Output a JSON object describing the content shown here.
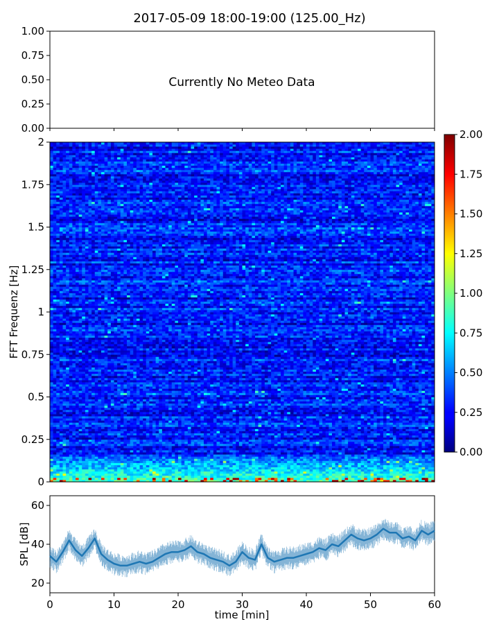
{
  "title": "2017-05-09 18:00-19:00 (125.00_Hz)",
  "meteo": {
    "message": "Currently No Meteo Data",
    "y_ticks": [
      "0.00",
      "0.25",
      "0.50",
      "0.75",
      "1.00"
    ]
  },
  "chart_data": [
    {
      "type": "table",
      "panel": "meteo",
      "ylim": [
        0,
        1
      ],
      "y_ticks": [
        0,
        0.25,
        0.5,
        0.75,
        1.0
      ],
      "annotation": "Currently No Meteo Data"
    },
    {
      "type": "heatmap",
      "panel": "spectrogram",
      "ylabel": "FFT Frequenz [Hz]",
      "xlim": [
        0,
        60
      ],
      "ylim": [
        0,
        2
      ],
      "y_ticks": [
        "0",
        "0.25",
        "0.5",
        "0.75",
        "1",
        "1.25",
        "1.5",
        "1.75",
        "2"
      ],
      "colormap": "jet",
      "colorbar_range": [
        0,
        2
      ],
      "colorbar_ticks": [
        "0.00",
        "0.25",
        "0.50",
        "0.75",
        "1.00",
        "1.25",
        "1.50",
        "1.75",
        "2.00"
      ],
      "rows": 160,
      "cols": 120,
      "typical_value": 0.3,
      "low_freq_band_hz": [
        0,
        0.15
      ],
      "low_freq_band_value": 0.9,
      "peak_value": 2.0
    },
    {
      "type": "line",
      "panel": "spl",
      "xlabel": "time [min]",
      "ylabel": "SPL [dB]",
      "xlim": [
        0,
        60
      ],
      "ylim": [
        15,
        65
      ],
      "x_ticks": [
        "0",
        "10",
        "20",
        "30",
        "40",
        "50",
        "60"
      ],
      "y_ticks": [
        "20",
        "40",
        "60"
      ],
      "color": "#1f77b4",
      "x": [
        0,
        1,
        2,
        3,
        4,
        5,
        6,
        7,
        8,
        9,
        10,
        11,
        12,
        13,
        14,
        15,
        16,
        17,
        18,
        19,
        20,
        21,
        22,
        23,
        24,
        25,
        26,
        27,
        28,
        29,
        30,
        31,
        32,
        33,
        34,
        35,
        36,
        37,
        38,
        39,
        40,
        41,
        42,
        43,
        44,
        45,
        46,
        47,
        48,
        49,
        50,
        51,
        52,
        53,
        54,
        55,
        56,
        57,
        58,
        59,
        60
      ],
      "y": [
        34,
        31,
        36,
        42,
        37,
        34,
        38,
        43,
        35,
        32,
        30,
        29,
        29,
        30,
        31,
        30,
        31,
        33,
        35,
        36,
        36,
        37,
        39,
        36,
        35,
        33,
        32,
        31,
        29,
        31,
        36,
        33,
        32,
        40,
        33,
        31,
        32,
        33,
        33,
        34,
        35,
        36,
        38,
        37,
        40,
        39,
        42,
        45,
        43,
        42,
        43,
        45,
        48,
        46,
        46,
        43,
        44,
        42,
        47,
        45,
        47
      ],
      "noise_amplitude_db": 4
    }
  ]
}
